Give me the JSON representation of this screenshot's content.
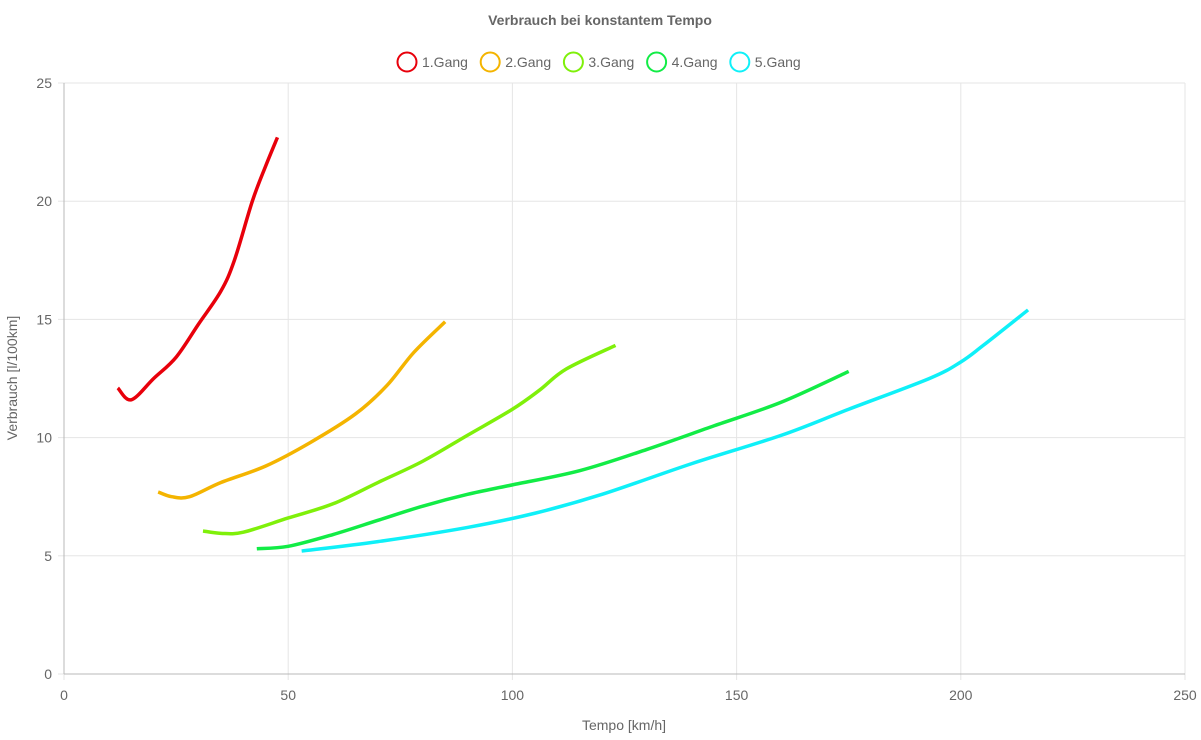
{
  "chart_data": {
    "type": "line",
    "title": "Verbrauch bei konstantem Tempo",
    "xlabel": "Tempo [km/h]",
    "ylabel": "Verbrauch [l/100km]",
    "xlim": [
      0,
      250
    ],
    "ylim": [
      0,
      25
    ],
    "x_ticks": [
      "0",
      "50",
      "100",
      "150",
      "200",
      "250"
    ],
    "y_ticks": [
      "0",
      "5",
      "10",
      "15",
      "20",
      "25"
    ],
    "grid": true,
    "legend_position": "top",
    "series": [
      {
        "name": "1.Gang",
        "color": "#e8000b",
        "points": [
          [
            12,
            12.1
          ],
          [
            15,
            11.6
          ],
          [
            20,
            12.5
          ],
          [
            25,
            13.4
          ],
          [
            30,
            14.8
          ],
          [
            35,
            16.2
          ],
          [
            38,
            17.5
          ],
          [
            42,
            20.0
          ],
          [
            45,
            21.5
          ],
          [
            47.6,
            22.7
          ]
        ]
      },
      {
        "name": "2.Gang",
        "color": "#f4b400",
        "points": [
          [
            21,
            7.7
          ],
          [
            24,
            7.5
          ],
          [
            28,
            7.5
          ],
          [
            35,
            8.1
          ],
          [
            45,
            8.8
          ],
          [
            55,
            9.8
          ],
          [
            65,
            11.0
          ],
          [
            72,
            12.2
          ],
          [
            78,
            13.6
          ],
          [
            85,
            14.9
          ]
        ]
      },
      {
        "name": "3.Gang",
        "color": "#7ff00a",
        "points": [
          [
            31,
            6.05
          ],
          [
            35,
            5.95
          ],
          [
            40,
            6.0
          ],
          [
            50,
            6.6
          ],
          [
            60,
            7.2
          ],
          [
            70,
            8.1
          ],
          [
            80,
            9.0
          ],
          [
            90,
            10.1
          ],
          [
            100,
            11.2
          ],
          [
            106,
            12.0
          ],
          [
            112,
            12.9
          ],
          [
            123,
            13.9
          ]
        ]
      },
      {
        "name": "4.Gang",
        "color": "#12ec46",
        "points": [
          [
            43,
            5.3
          ],
          [
            50,
            5.4
          ],
          [
            60,
            5.9
          ],
          [
            70,
            6.5
          ],
          [
            80,
            7.1
          ],
          [
            90,
            7.6
          ],
          [
            100,
            8.0
          ],
          [
            115,
            8.6
          ],
          [
            130,
            9.5
          ],
          [
            145,
            10.5
          ],
          [
            160,
            11.5
          ],
          [
            175,
            12.8
          ]
        ]
      },
      {
        "name": "5.Gang",
        "color": "#0ff0f8",
        "points": [
          [
            53,
            5.2
          ],
          [
            70,
            5.6
          ],
          [
            90,
            6.2
          ],
          [
            105,
            6.8
          ],
          [
            120,
            7.6
          ],
          [
            140,
            8.9
          ],
          [
            160,
            10.1
          ],
          [
            175,
            11.2
          ],
          [
            193,
            12.5
          ],
          [
            200,
            13.2
          ],
          [
            205,
            13.9
          ],
          [
            215,
            15.4
          ]
        ]
      }
    ]
  }
}
